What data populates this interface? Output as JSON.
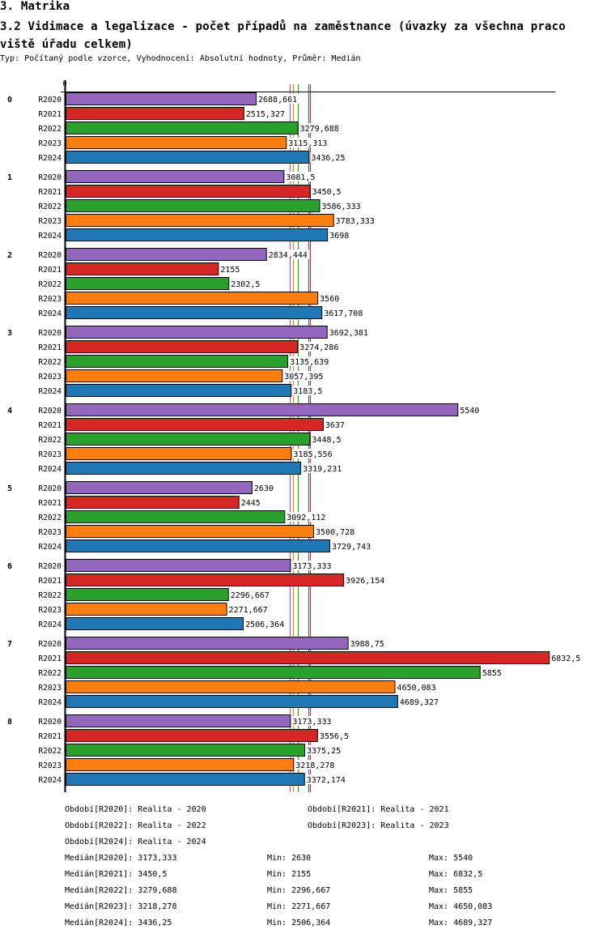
{
  "header": {
    "section": "3. Matrika",
    "title": "3.2 Vidimace a legalizace - počet případů na zaměstnance (úvazky za všechna praco viště úřadu celkem)",
    "subtitle": "Typ: Počítaný podle vzorce, Vyhodnocení: Absolutní hodnoty, Průměr: Medián"
  },
  "chart_data": {
    "type": "bar",
    "orientation": "horizontal",
    "title": "3.2 Vidimace a legalizace - počet případů na zaměstnance (úvazky za všechna pracoviště úřadu celkem)",
    "xlabel": "",
    "ylabel": "",
    "x_tick_labels": [
      "0"
    ],
    "xlim": [
      0,
      6900
    ],
    "grid": false,
    "categories": [
      "0",
      "1",
      "2",
      "3",
      "4",
      "5",
      "6",
      "7",
      "8"
    ],
    "series": [
      {
        "name": "R2020",
        "color": "#9467bd",
        "values": [
          2688.661,
          3081.5,
          2834.444,
          3692.381,
          5540,
          2630,
          3173.333,
          3988.75,
          3173.333
        ],
        "labels": [
          "2688,661",
          "3081,5",
          "2834,444",
          "3692,381",
          "5540",
          "2630",
          "3173,333",
          "3988,75",
          "3173,333"
        ]
      },
      {
        "name": "R2021",
        "color": "#d62728",
        "values": [
          2515.327,
          3450.5,
          2155,
          3274.286,
          3637,
          2445,
          3926.154,
          6832.5,
          3556.5
        ],
        "labels": [
          "2515,327",
          "3450,5",
          "2155",
          "3274,286",
          "3637",
          "2445",
          "3926,154",
          "6832,5",
          "3556,5"
        ]
      },
      {
        "name": "R2022",
        "color": "#2ca02c",
        "values": [
          3279.688,
          3586.333,
          2302.5,
          3135.639,
          3448.5,
          3092.112,
          2296.667,
          5855,
          3375.25
        ],
        "labels": [
          "3279,688",
          "3586,333",
          "2302,5",
          "3135,639",
          "3448,5",
          "3092,112",
          "2296,667",
          "5855",
          "3375,25"
        ]
      },
      {
        "name": "R2023",
        "color": "#ff7f0e",
        "values": [
          3115.313,
          3783.333,
          3560,
          3057.395,
          3185.556,
          3500.728,
          2271.667,
          4650.083,
          3218.278
        ],
        "labels": [
          "3115,313",
          "3783,333",
          "3560",
          "3057,395",
          "3185,556",
          "3500,728",
          "2271,667",
          "4650,083",
          "3218,278"
        ]
      },
      {
        "name": "R2024",
        "color": "#1f77b4",
        "values": [
          3436.25,
          3698,
          3617.708,
          3183.5,
          3319.231,
          3729.743,
          2506.364,
          4689.327,
          3372.174
        ],
        "labels": [
          "3436,25",
          "3698",
          "3617,708",
          "3183,5",
          "3319,231",
          "3729,743",
          "2506,364",
          "4689,327",
          "3372,174"
        ]
      }
    ],
    "median_lines": [
      {
        "series": "R2020",
        "value": 3173.333,
        "color": "#9467bd"
      },
      {
        "series": "R2021",
        "value": 3450.5,
        "color": "#d62728"
      },
      {
        "series": "R2022",
        "value": 3279.688,
        "color": "#2ca02c"
      },
      {
        "series": "R2023",
        "value": 3218.278,
        "color": "#ff7f0e"
      },
      {
        "series": "R2024",
        "value": 3436.25,
        "color": "#1f77b4"
      }
    ],
    "legend_position": "bottom"
  },
  "legend": {
    "periods": [
      "Období[R2020]: Realita - 2020",
      "Období[R2021]: Realita - 2021",
      "Období[R2022]: Realita - 2022",
      "Období[R2023]: Realita - 2023",
      "Období[R2024]: Realita - 2024"
    ],
    "stats": [
      {
        "median": "Medián[R2020]: 3173,333",
        "min": "Min: 2630",
        "max": "Max: 5540"
      },
      {
        "median": "Medián[R2021]: 3450,5",
        "min": "Min: 2155",
        "max": "Max: 6832,5"
      },
      {
        "median": "Medián[R2022]: 3279,688",
        "min": "Min: 2296,667",
        "max": "Max: 5855"
      },
      {
        "median": "Medián[R2023]: 3218,278",
        "min": "Min: 2271,667",
        "max": "Max: 4650,083"
      },
      {
        "median": "Medián[R2024]: 3436,25",
        "min": "Min: 2506,364",
        "max": "Max: 4689,327"
      }
    ]
  }
}
